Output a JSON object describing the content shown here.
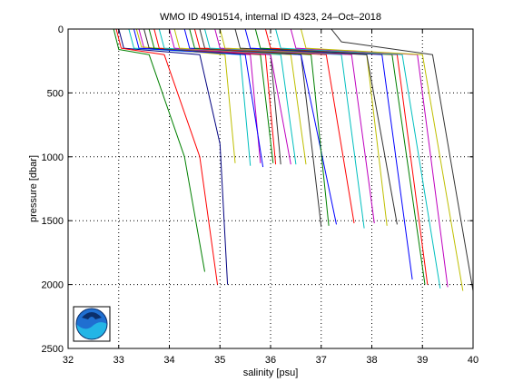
{
  "chart_data": {
    "type": "line",
    "title": "WMO ID 4901514, internal ID 4323, 24–Oct–2018",
    "xlabel": "salinity [psu]",
    "ylabel": "pressure [dbar]",
    "xlim": [
      32,
      40
    ],
    "ylim": [
      0,
      2500
    ],
    "y_reversed": true,
    "grid": true,
    "x_ticks": [
      "32",
      "33",
      "34",
      "35",
      "36",
      "37",
      "38",
      "39",
      "40"
    ],
    "y_ticks": [
      "0",
      "500",
      "1000",
      "1500",
      "2000",
      "2500"
    ],
    "legend": "none",
    "logo": "NOAA",
    "series": [
      {
        "color": "#00007f",
        "points": [
          [
            33.0,
            0
          ],
          [
            33.1,
            150
          ],
          [
            34.6,
            200
          ],
          [
            35.0,
            900
          ],
          [
            35.15,
            2000
          ]
        ]
      },
      {
        "color": "#008000",
        "points": [
          [
            32.9,
            0
          ],
          [
            33.0,
            160
          ],
          [
            33.6,
            200
          ],
          [
            34.3,
            1000
          ],
          [
            34.7,
            1900
          ]
        ]
      },
      {
        "color": "#ff0000",
        "points": [
          [
            32.95,
            0
          ],
          [
            33.05,
            150
          ],
          [
            33.9,
            200
          ],
          [
            34.6,
            1000
          ],
          [
            34.95,
            2000
          ]
        ]
      },
      {
        "color": "#00bfbf",
        "points": [
          [
            33.2,
            0
          ],
          [
            33.3,
            150
          ],
          [
            35.4,
            200
          ],
          [
            35.6,
            1070
          ]
        ]
      },
      {
        "color": "#bf00bf",
        "points": [
          [
            33.4,
            0
          ],
          [
            33.5,
            150
          ],
          [
            35.6,
            200
          ],
          [
            35.8,
            1050
          ]
        ]
      },
      {
        "color": "#bfbf00",
        "points": [
          [
            33.35,
            0
          ],
          [
            33.45,
            140
          ],
          [
            35.1,
            200
          ],
          [
            35.3,
            1050
          ]
        ]
      },
      {
        "color": "#333333",
        "points": [
          [
            33.5,
            0
          ],
          [
            33.6,
            150
          ],
          [
            36.0,
            200
          ],
          [
            36.2,
            1060
          ]
        ]
      },
      {
        "color": "#0000ff",
        "points": [
          [
            33.3,
            0
          ],
          [
            33.4,
            150
          ],
          [
            35.5,
            200
          ],
          [
            35.85,
            1080
          ]
        ]
      },
      {
        "color": "#008000",
        "points": [
          [
            33.6,
            0
          ],
          [
            33.7,
            150
          ],
          [
            35.8,
            200
          ],
          [
            36.05,
            1050
          ]
        ]
      },
      {
        "color": "#ff0000",
        "points": [
          [
            33.7,
            0
          ],
          [
            33.8,
            150
          ],
          [
            35.9,
            200
          ],
          [
            36.1,
            1060
          ]
        ]
      },
      {
        "color": "#00bfbf",
        "points": [
          [
            33.8,
            0
          ],
          [
            33.9,
            150
          ],
          [
            36.2,
            200
          ],
          [
            36.5,
            1060
          ]
        ]
      },
      {
        "color": "#bf00bf",
        "points": [
          [
            34.0,
            0
          ],
          [
            34.1,
            150
          ],
          [
            36.0,
            200
          ],
          [
            36.4,
            1060
          ]
        ]
      },
      {
        "color": "#bfbf00",
        "points": [
          [
            34.1,
            0
          ],
          [
            34.2,
            150
          ],
          [
            36.4,
            200
          ],
          [
            36.7,
            1060
          ]
        ]
      },
      {
        "color": "#333333",
        "points": [
          [
            34.6,
            0
          ],
          [
            34.7,
            150
          ],
          [
            36.6,
            200
          ],
          [
            37.0,
            1550
          ]
        ]
      },
      {
        "color": "#0000ff",
        "points": [
          [
            34.3,
            0
          ],
          [
            34.4,
            150
          ],
          [
            36.6,
            200
          ],
          [
            37.3,
            1530
          ]
        ]
      },
      {
        "color": "#008000",
        "points": [
          [
            34.4,
            0
          ],
          [
            34.5,
            150
          ],
          [
            36.8,
            200
          ],
          [
            37.15,
            1540
          ]
        ]
      },
      {
        "color": "#ff0000",
        "points": [
          [
            34.5,
            0
          ],
          [
            34.6,
            150
          ],
          [
            37.1,
            200
          ],
          [
            37.65,
            1520
          ]
        ]
      },
      {
        "color": "#00bfbf",
        "points": [
          [
            34.7,
            0
          ],
          [
            34.8,
            150
          ],
          [
            37.4,
            200
          ],
          [
            37.85,
            1560
          ]
        ]
      },
      {
        "color": "#bf00bf",
        "points": [
          [
            34.9,
            0
          ],
          [
            35.0,
            150
          ],
          [
            37.6,
            200
          ],
          [
            38.05,
            1520
          ]
        ]
      },
      {
        "color": "#bfbf00",
        "points": [
          [
            35.0,
            0
          ],
          [
            35.1,
            150
          ],
          [
            37.9,
            200
          ],
          [
            38.3,
            1540
          ]
        ]
      },
      {
        "color": "#333333",
        "points": [
          [
            35.3,
            0
          ],
          [
            35.4,
            150
          ],
          [
            37.9,
            200
          ],
          [
            38.5,
            1530
          ]
        ]
      },
      {
        "color": "#0000ff",
        "points": [
          [
            35.5,
            0
          ],
          [
            35.6,
            150
          ],
          [
            38.2,
            200
          ],
          [
            38.8,
            1960
          ]
        ]
      },
      {
        "color": "#008000",
        "points": [
          [
            35.7,
            0
          ],
          [
            35.8,
            150
          ],
          [
            38.4,
            200
          ],
          [
            39.05,
            2000
          ]
        ]
      },
      {
        "color": "#ff0000",
        "points": [
          [
            35.9,
            0
          ],
          [
            36.0,
            150
          ],
          [
            38.5,
            200
          ],
          [
            39.1,
            2000
          ]
        ]
      },
      {
        "color": "#00bfbf",
        "points": [
          [
            36.1,
            0
          ],
          [
            36.2,
            150
          ],
          [
            38.6,
            200
          ],
          [
            39.35,
            2030
          ]
        ]
      },
      {
        "color": "#bf00bf",
        "points": [
          [
            36.4,
            0
          ],
          [
            36.5,
            150
          ],
          [
            38.9,
            200
          ],
          [
            39.5,
            2020
          ]
        ]
      },
      {
        "color": "#bfbf00",
        "points": [
          [
            36.6,
            0
          ],
          [
            36.7,
            150
          ],
          [
            39.0,
            200
          ],
          [
            39.8,
            2050
          ]
        ]
      },
      {
        "color": "#333333",
        "points": [
          [
            37.2,
            0
          ],
          [
            37.4,
            100
          ],
          [
            39.2,
            200
          ],
          [
            40.0,
            2050
          ]
        ]
      }
    ]
  }
}
